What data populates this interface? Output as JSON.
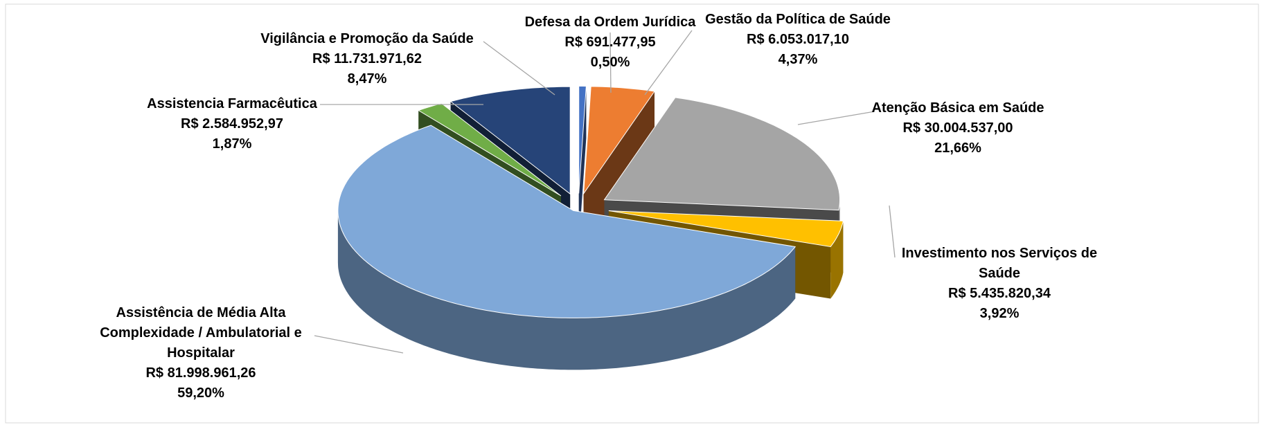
{
  "chart_data": {
    "type": "pie",
    "categories": [
      "Defesa da Ordem Jurídica",
      "Gestão da Política de Saúde",
      "Atenção Básica em Saúde",
      "Investimento nos Serviços de Saúde",
      "Assistência de Média  Alta Complexidade / Ambulatorial e Hospitalar",
      "Assistencia Farmacêutica",
      "Vigilância e Promoção da Saúde"
    ],
    "values": [
      0.5,
      4.37,
      21.66,
      3.92,
      59.2,
      1.87,
      8.47
    ],
    "value_labels": [
      "0,50%",
      "4,37%",
      "21,66%",
      "3,92%",
      "59,20%",
      "1,87%",
      "8,47%"
    ],
    "amounts": [
      691477.95,
      6053017.1,
      30004537.0,
      5435820.34,
      81998961.26,
      2584952.97,
      11731971.62
    ],
    "amount_labels": [
      "R$ 691.477,95",
      "R$ 6.053.017,10",
      "R$ 30.004.537,00",
      "R$ 5.435.820,34",
      "R$ 81.998.961,26",
      "R$ 2.584.952,97",
      "R$ 11.731.971,62"
    ],
    "colors": [
      "#4472c4",
      "#ed7d31",
      "#a5a5a5",
      "#ffc000",
      "#7fa8d8",
      "#70ad47",
      "#264478"
    ]
  }
}
